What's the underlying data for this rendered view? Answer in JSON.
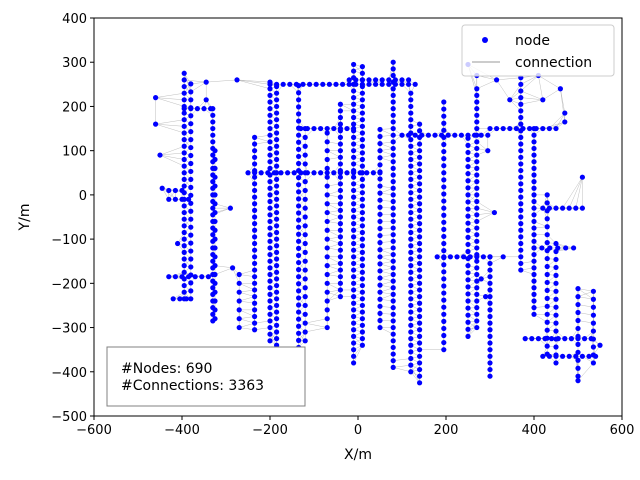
{
  "chart_data": {
    "type": "scatter",
    "xlabel": "X/m",
    "ylabel": "Y/m",
    "xlim": [
      -600,
      600
    ],
    "ylim": [
      -500,
      400
    ],
    "x_ticks": [
      -600,
      -400,
      -200,
      0,
      200,
      400,
      600
    ],
    "y_ticks": [
      -500,
      -400,
      -300,
      -200,
      -100,
      0,
      100,
      200,
      300,
      400
    ],
    "x_tick_labels": [
      "−600",
      "−400",
      "−200",
      "0",
      "200",
      "400",
      "600"
    ],
    "y_tick_labels": [
      "−500",
      "−400",
      "−300",
      "−200",
      "−100",
      "0",
      "100",
      "200",
      "300",
      "400"
    ],
    "grid": false,
    "legend": {
      "position": "top-right",
      "entries": [
        {
          "label": "node",
          "marker": "circle",
          "color": "#0000ff"
        },
        {
          "label": "connection",
          "marker": "line",
          "color": "#999999"
        }
      ]
    },
    "annotation": {
      "position": "bottom-left",
      "lines": [
        "#Nodes: 690",
        "#Connections: 3363"
      ]
    },
    "series": [
      {
        "name": "node",
        "color": "#0000ff",
        "columns": [
          {
            "x": -395,
            "y_from": -235,
            "y_to": 275,
            "step": 15
          },
          {
            "x": -380,
            "y_from": -235,
            "y_to": 260,
            "step": 18
          },
          {
            "x": -330,
            "y_from": -285,
            "y_to": 195,
            "step": 15
          },
          {
            "x": -325,
            "y_from": -280,
            "y_to": 110,
            "step": 20
          },
          {
            "x": -270,
            "y_from": -300,
            "y_to": -170,
            "step": 20
          },
          {
            "x": -235,
            "y_from": -305,
            "y_to": 140,
            "step": 15
          },
          {
            "x": -200,
            "y_from": -330,
            "y_to": 265,
            "step": 15
          },
          {
            "x": -185,
            "y_from": -340,
            "y_to": 250,
            "step": 15
          },
          {
            "x": -135,
            "y_from": -345,
            "y_to": 250,
            "step": 16
          },
          {
            "x": -120,
            "y_from": -330,
            "y_to": 150,
            "step": 20
          },
          {
            "x": -70,
            "y_from": -300,
            "y_to": 140,
            "step": 20
          },
          {
            "x": -40,
            "y_from": -230,
            "y_to": 210,
            "step": 15
          },
          {
            "x": -10,
            "y_from": -380,
            "y_to": 300,
            "step": 15
          },
          {
            "x": 10,
            "y_from": -340,
            "y_to": 290,
            "step": 15
          },
          {
            "x": 50,
            "y_from": -300,
            "y_to": 150,
            "step": 16
          },
          {
            "x": 80,
            "y_from": -390,
            "y_to": 310,
            "step": 15
          },
          {
            "x": 120,
            "y_from": -400,
            "y_to": 240,
            "step": 15
          },
          {
            "x": 140,
            "y_from": -425,
            "y_to": 170,
            "step": 15
          },
          {
            "x": 195,
            "y_from": -350,
            "y_to": 220,
            "step": 16
          },
          {
            "x": 250,
            "y_from": -320,
            "y_to": 130,
            "step": 16
          },
          {
            "x": 270,
            "y_from": -300,
            "y_to": 240,
            "step": 15
          },
          {
            "x": 300,
            "y_from": -410,
            "y_to": -140,
            "step": 15
          },
          {
            "x": 370,
            "y_from": -170,
            "y_to": 275,
            "step": 15
          },
          {
            "x": 400,
            "y_from": -270,
            "y_to": 160,
            "step": 15
          },
          {
            "x": 430,
            "y_from": -360,
            "y_to": 0,
            "step": 18
          },
          {
            "x": 450,
            "y_from": -380,
            "y_to": -100,
            "step": 18
          },
          {
            "x": 500,
            "y_from": -410,
            "y_to": -210,
            "step": 18
          },
          {
            "x": 535,
            "y_from": -380,
            "y_to": -210,
            "step": 18
          }
        ],
        "rows": [
          {
            "y": 195,
            "x_from": -395,
            "x_to": -330,
            "step": 15
          },
          {
            "y": 250,
            "x_from": -200,
            "x_to": 130,
            "step": 15
          },
          {
            "y": 260,
            "x_from": -20,
            "x_to": 120,
            "step": 15
          },
          {
            "y": 150,
            "x_from": -130,
            "x_to": 0,
            "step": 15
          },
          {
            "y": 135,
            "x_from": 100,
            "x_to": 300,
            "step": 15
          },
          {
            "y": 150,
            "x_from": 300,
            "x_to": 460,
            "step": 15
          },
          {
            "y": 50,
            "x_from": -250,
            "x_to": 50,
            "step": 15
          },
          {
            "y": 10,
            "x_from": -430,
            "x_to": -390,
            "step": 15
          },
          {
            "y": -10,
            "x_from": -430,
            "x_to": -380,
            "step": 15
          },
          {
            "y": -30,
            "x_from": 420,
            "x_to": 510,
            "step": 15
          },
          {
            "y": -140,
            "x_from": 180,
            "x_to": 310,
            "step": 15
          },
          {
            "y": -185,
            "x_from": -430,
            "x_to": -330,
            "step": 15
          },
          {
            "y": -235,
            "x_from": -420,
            "x_to": -380,
            "step": 15
          },
          {
            "y": -325,
            "x_from": 380,
            "x_to": 540,
            "step": 15
          },
          {
            "y": -365,
            "x_from": 420,
            "x_to": 540,
            "step": 15
          },
          {
            "y": -120,
            "x_from": 400,
            "x_to": 500,
            "step": 18
          }
        ],
        "points": [
          {
            "x": -460,
            "y": 220
          },
          {
            "x": -460,
            "y": 160
          },
          {
            "x": -450,
            "y": 90
          },
          {
            "x": -445,
            "y": 15
          },
          {
            "x": -410,
            "y": -110
          },
          {
            "x": -345,
            "y": 255
          },
          {
            "x": -345,
            "y": 215
          },
          {
            "x": -275,
            "y": 260
          },
          {
            "x": -290,
            "y": -30
          },
          {
            "x": -285,
            "y": -165
          },
          {
            "x": 250,
            "y": 295
          },
          {
            "x": 270,
            "y": 270
          },
          {
            "x": 315,
            "y": 260
          },
          {
            "x": 345,
            "y": 215
          },
          {
            "x": 410,
            "y": 270
          },
          {
            "x": 420,
            "y": 215
          },
          {
            "x": 460,
            "y": 240
          },
          {
            "x": 470,
            "y": 185
          },
          {
            "x": 470,
            "y": 165
          },
          {
            "x": 510,
            "y": 40
          },
          {
            "x": 295,
            "y": 100
          },
          {
            "x": 310,
            "y": -40
          },
          {
            "x": 330,
            "y": -140
          },
          {
            "x": 280,
            "y": -190
          },
          {
            "x": 290,
            "y": -230
          },
          {
            "x": 550,
            "y": -340
          },
          {
            "x": 500,
            "y": -420
          }
        ]
      },
      {
        "name": "connection",
        "color": "#999999",
        "line_width": 0.4,
        "rule": "each node linked to its nearest neighbours"
      }
    ]
  }
}
